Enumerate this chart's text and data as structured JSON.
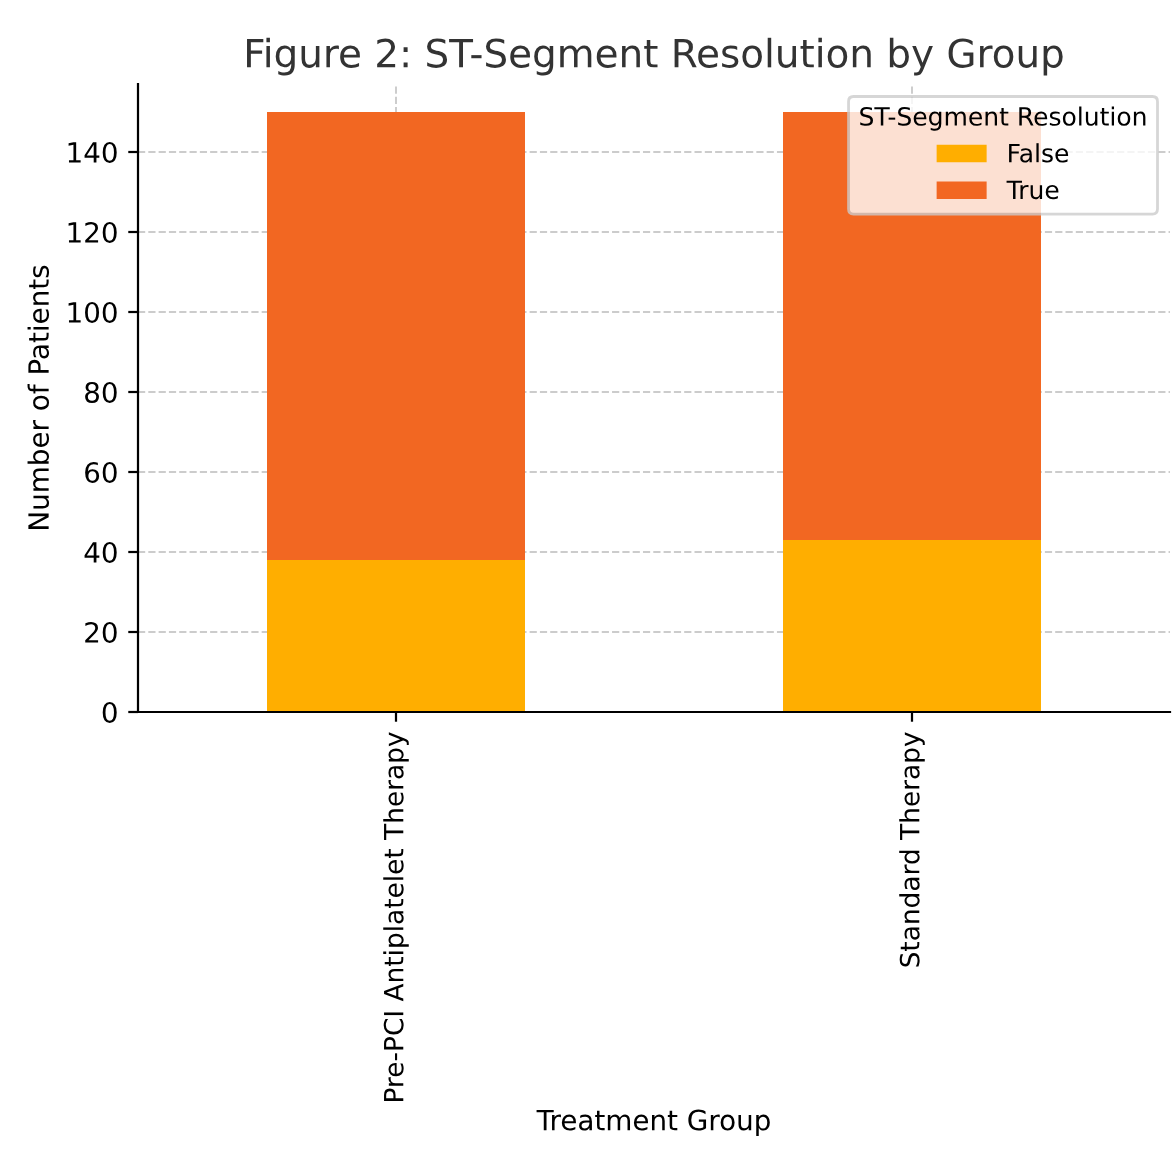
{
  "chart_data": {
    "type": "bar",
    "title": "Figure 2: ST-Segment Resolution by Group",
    "xlabel": "Treatment Group",
    "ylabel": "Number of Patients",
    "legend_title": "ST-Segment Resolution",
    "categories": [
      "Pre-PCI Antiplatelet Therapy",
      "Standard Therapy"
    ],
    "series": [
      {
        "name": "False",
        "color": "#ffae00",
        "values": [
          38,
          43
        ]
      },
      {
        "name": "True",
        "color": "#f26722",
        "values": [
          112,
          107
        ]
      }
    ],
    "stacked": true,
    "ylim": [
      0,
      157
    ],
    "yticks": [
      0,
      20,
      40,
      60,
      80,
      100,
      120,
      140
    ],
    "grid": true,
    "legend": "top right"
  }
}
